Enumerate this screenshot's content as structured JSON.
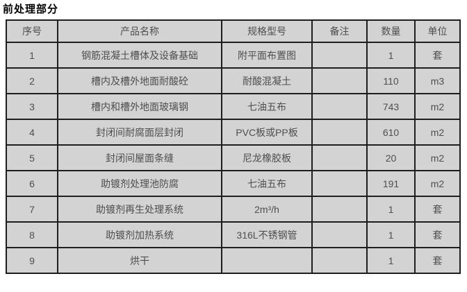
{
  "page": {
    "title": "前处理部分"
  },
  "table": {
    "columns": [
      {
        "key": "seq",
        "label": "序号"
      },
      {
        "key": "name",
        "label": "产品名称"
      },
      {
        "key": "spec",
        "label": "规格型号"
      },
      {
        "key": "note",
        "label": "备注"
      },
      {
        "key": "qty",
        "label": "数量"
      },
      {
        "key": "unit",
        "label": "单位"
      }
    ],
    "rows": [
      {
        "seq": "1",
        "name": "钢筋混凝土槽体及设备基础",
        "spec": "附平面布置图",
        "note": "",
        "qty": "1",
        "unit": "套"
      },
      {
        "seq": "2",
        "name": "槽内及槽外地面耐酸砼",
        "spec": "耐酸混凝土",
        "note": "",
        "qty": "110",
        "unit": "m3"
      },
      {
        "seq": "3",
        "name": "槽内和槽外地面玻璃钢",
        "spec": "七油五布",
        "note": "",
        "qty": "743",
        "unit": "m2"
      },
      {
        "seq": "4",
        "name": "封闭间耐腐面层封闭",
        "spec": "PVC板或PP板",
        "note": "",
        "qty": "610",
        "unit": "m2"
      },
      {
        "seq": "5",
        "name": "封闭间屋面条缝",
        "spec": "尼龙橡胶板",
        "note": "",
        "qty": "20",
        "unit": "m2"
      },
      {
        "seq": "6",
        "name": "助镀剂处理池防腐",
        "spec": "七油五布",
        "note": "",
        "qty": "191",
        "unit": "m2"
      },
      {
        "seq": "7",
        "name": "助镀剂再生处理系统",
        "spec": "2m³/h",
        "note": "",
        "qty": "1",
        "unit": "套"
      },
      {
        "seq": "8",
        "name": "助镀剂加热系统",
        "spec": "316L不锈钢管",
        "note": "",
        "qty": "1",
        "unit": "套"
      },
      {
        "seq": "9",
        "name": "烘干",
        "spec": "",
        "note": "",
        "qty": "1",
        "unit": "套"
      }
    ],
    "colors": {
      "cell_background": "#d3d3d3",
      "border": "#1d1d1d",
      "cell_text": "#4e4e4e",
      "title_text": "#000000",
      "page_background": "#ffffff"
    }
  }
}
